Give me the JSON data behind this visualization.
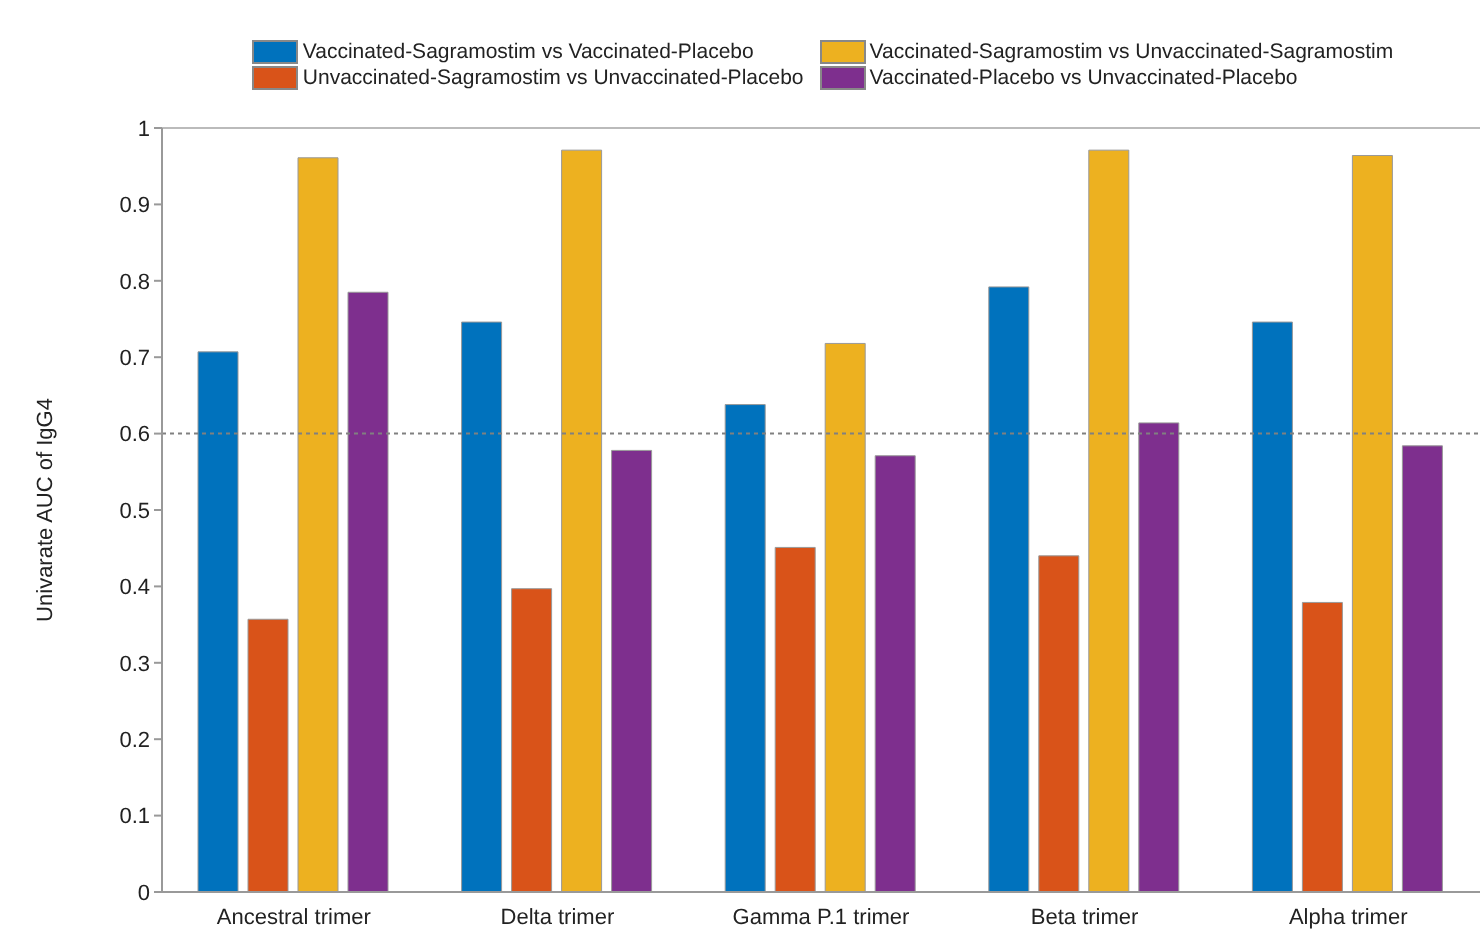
{
  "chart_data": {
    "type": "bar",
    "categories": [
      "Ancestral trimer",
      "Delta trimer",
      "Gamma P.1 trimer",
      "Beta trimer",
      "Alpha trimer"
    ],
    "series": [
      {
        "name": "Vaccinated-Sagramostim vs Vaccinated-Placebo",
        "color": "#0072bd",
        "values": [
          0.707,
          0.746,
          0.638,
          0.792,
          0.746
        ]
      },
      {
        "name": "Unvaccinated-Sagramostim vs Unvaccinated-Placebo",
        "color": "#d95319",
        "values": [
          0.357,
          0.397,
          0.451,
          0.44,
          0.379
        ]
      },
      {
        "name": "Vaccinated-Sagramostim vs Unvaccinated-Sagramostim",
        "color": "#edb120",
        "values": [
          0.961,
          0.971,
          0.718,
          0.971,
          0.964
        ]
      },
      {
        "name": "Vaccinated-Placebo vs Unvaccinated-Placebo",
        "color": "#7e2f8e",
        "values": [
          0.785,
          0.578,
          0.571,
          0.614,
          0.584
        ]
      }
    ],
    "ylabel": "Univarate AUC of IgG4",
    "ylim": [
      0,
      1
    ],
    "yticks": [
      0,
      0.1,
      0.2,
      0.3,
      0.4,
      0.5,
      0.6,
      0.7,
      0.8,
      0.9,
      1
    ],
    "ref_lines": [
      {
        "axis": "y",
        "value": 0.6,
        "color": "#808080",
        "line_style": "dotted"
      }
    ],
    "grid": false,
    "legend": "top"
  }
}
